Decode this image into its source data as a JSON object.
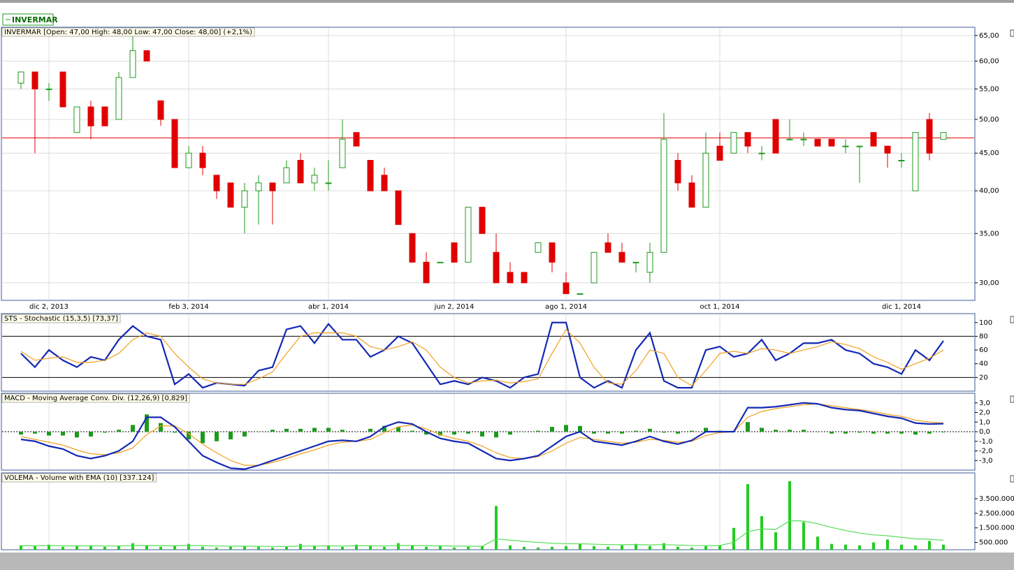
{
  "app_tab": "INVERMAR",
  "chart_data": [
    {
      "type": "candlestick",
      "title": "INVERMAR [Open: 47,00  High: 48,00  Low: 47,00  Close: 48,00] (+2,1%)",
      "categories": [
        null,
        null,
        "dic 2, 2013",
        null,
        null,
        null,
        null,
        null,
        null,
        null,
        null,
        null,
        "feb 3, 2014",
        null,
        null,
        null,
        null,
        null,
        null,
        null,
        null,
        null,
        "abr 1, 2014",
        null,
        null,
        null,
        null,
        null,
        null,
        null,
        null,
        "jun 2, 2014",
        null,
        null,
        null,
        null,
        null,
        null,
        null,
        "ago 1, 2014",
        null,
        null,
        null,
        null,
        null,
        null,
        null,
        null,
        null,
        null,
        "oct 1, 2014",
        null,
        null,
        null,
        null,
        null,
        null,
        null,
        null,
        null,
        null,
        null,
        null,
        "dic 1, 2014",
        null,
        null,
        null
      ],
      "open": [
        56,
        58,
        55,
        58,
        48,
        52,
        52,
        50,
        57,
        62,
        53,
        50,
        43,
        45,
        42,
        41,
        38,
        40,
        41,
        41,
        44,
        41,
        41,
        43,
        48,
        44,
        42,
        40,
        35,
        32,
        32,
        34,
        32,
        38,
        33,
        31,
        31,
        33,
        34,
        30,
        29,
        30,
        34,
        33,
        32,
        31,
        33,
        44,
        41,
        38,
        46,
        45,
        48,
        45,
        50,
        47,
        47,
        47,
        47,
        46,
        46,
        48,
        46,
        44,
        40,
        50,
        47
      ],
      "high": [
        58,
        58,
        56,
        58,
        52,
        53,
        52,
        58,
        65,
        62,
        53,
        50,
        46,
        46,
        42,
        41,
        41,
        42,
        41,
        44,
        45,
        43,
        44,
        50,
        48,
        44,
        43,
        40,
        35,
        33,
        32,
        34,
        38,
        38,
        35,
        32,
        31,
        34,
        34,
        31,
        29,
        33,
        35,
        34,
        32,
        34,
        51,
        45,
        42,
        48,
        48,
        48,
        48,
        46,
        50,
        50,
        48,
        47,
        47,
        47,
        46,
        48,
        46,
        45,
        48,
        51,
        48
      ],
      "low": [
        55,
        45,
        53,
        52,
        48,
        47,
        49,
        50,
        57,
        60,
        49,
        43,
        43,
        42,
        39,
        38,
        35,
        36,
        36,
        41,
        41,
        40,
        40,
        43,
        46,
        40,
        40,
        36,
        32,
        30,
        32,
        32,
        32,
        35,
        30,
        30,
        30,
        33,
        31,
        29,
        29,
        30,
        33,
        32,
        31,
        30,
        33,
        40,
        38,
        38,
        44,
        45,
        45,
        44,
        45,
        47,
        46,
        46,
        46,
        45,
        41,
        46,
        43,
        43,
        40,
        44,
        47
      ],
      "close": [
        58,
        55,
        55,
        52,
        52,
        49,
        49,
        57,
        62,
        60,
        50,
        43,
        45,
        43,
        40,
        38,
        40,
        41,
        40,
        43,
        41,
        42,
        41,
        47,
        46,
        40,
        40,
        36,
        32,
        30,
        32,
        32,
        38,
        35,
        30,
        30,
        30,
        34,
        32,
        29,
        29,
        33,
        33,
        32,
        32,
        33,
        47,
        41,
        38,
        45,
        44,
        48,
        46,
        45,
        45,
        47,
        47,
        46,
        46,
        46,
        46,
        46,
        45,
        44,
        48,
        45,
        48
      ],
      "up_color": "#1e9a1e",
      "down_color": "#e00000",
      "log_scale": true,
      "ylim": [
        28.4,
        66.7
      ],
      "yticks": [
        {
          "value": 30,
          "label": "30,00"
        },
        {
          "value": 35,
          "label": "35,00"
        },
        {
          "value": 40,
          "label": "40,00"
        },
        {
          "value": 45,
          "label": "45,00"
        },
        {
          "value": 50,
          "label": "50,00"
        },
        {
          "value": 55,
          "label": "55,00"
        },
        {
          "value": 60,
          "label": "60,00"
        },
        {
          "value": 65,
          "label": "65,00"
        }
      ],
      "grid": true,
      "reference_lines": [
        {
          "value": 47.2,
          "color": "#e00000"
        }
      ]
    },
    {
      "type": "line",
      "title": "STS - Stochastic (15,3,5) [73,37]",
      "series": [
        {
          "kind": "line",
          "color": "#1428b4",
          "values": [
            55,
            35,
            60,
            45,
            35,
            50,
            45,
            75,
            95,
            80,
            75,
            10,
            25,
            5,
            12,
            10,
            8,
            30,
            35,
            90,
            95,
            70,
            98,
            75,
            75,
            50,
            60,
            80,
            70,
            40,
            10,
            15,
            10,
            20,
            15,
            5,
            20,
            25,
            100,
            100,
            20,
            5,
            15,
            5,
            60,
            85,
            15,
            5,
            5,
            60,
            65,
            50,
            55,
            75,
            45,
            55,
            70,
            70,
            75,
            60,
            55,
            40,
            35,
            25,
            60,
            45,
            73.37
          ]
        },
        {
          "kind": "line",
          "color": "#f0a020",
          "values": [
            58,
            45,
            48,
            50,
            42,
            42,
            45,
            55,
            75,
            85,
            80,
            55,
            35,
            18,
            12,
            10,
            10,
            18,
            28,
            55,
            80,
            85,
            85,
            85,
            80,
            65,
            60,
            65,
            72,
            60,
            35,
            20,
            12,
            15,
            16,
            12,
            14,
            18,
            55,
            90,
            70,
            35,
            12,
            10,
            30,
            60,
            55,
            20,
            8,
            30,
            55,
            58,
            55,
            62,
            60,
            55,
            60,
            65,
            72,
            68,
            62,
            50,
            42,
            32,
            40,
            48,
            60
          ]
        }
      ],
      "ylim": [
        0,
        113
      ],
      "yticks": [
        20,
        40,
        60,
        80,
        100
      ],
      "grid": true,
      "reference_lines": [
        {
          "value": 20,
          "color": "#000000"
        },
        {
          "value": 80,
          "color": "#000000"
        }
      ]
    },
    {
      "type": "line",
      "title": "MACD - Moving Average Conv. Div. (12,26,9) [0,829]",
      "series": [
        {
          "kind": "bar",
          "color": "#1e9a1e",
          "values": [
            -0.3,
            -0.2,
            -0.4,
            -0.4,
            -0.6,
            -0.5,
            -0.1,
            0.2,
            0.7,
            1.8,
            0.9,
            -0.1,
            -0.8,
            -1.2,
            -1.0,
            -0.8,
            -0.5,
            0.0,
            0.2,
            0.3,
            0.3,
            0.4,
            0.4,
            0.2,
            0.0,
            0.3,
            0.6,
            0.5,
            0.1,
            -0.3,
            -0.4,
            -0.3,
            -0.2,
            -0.5,
            -0.6,
            -0.3,
            0.0,
            0.1,
            0.5,
            0.7,
            0.6,
            -0.2,
            -0.2,
            -0.2,
            0.1,
            0.3,
            -0.1,
            -0.2,
            0.1,
            0.4,
            0.1,
            0.0,
            1.0,
            0.4,
            0.2,
            0.2,
            0.2,
            0.0,
            -0.2,
            -0.2,
            -0.1,
            -0.2,
            -0.2,
            -0.2,
            -0.3,
            -0.2,
            -0.07
          ]
        },
        {
          "kind": "line",
          "color": "#f0a020",
          "values": [
            -0.5,
            -0.8,
            -1.1,
            -1.4,
            -1.9,
            -2.3,
            -2.4,
            -2.2,
            -1.7,
            -0.3,
            0.6,
            0.6,
            -0.2,
            -1.3,
            -2.2,
            -3.0,
            -3.5,
            -3.5,
            -3.2,
            -2.8,
            -2.3,
            -1.9,
            -1.4,
            -1.1,
            -1.0,
            -0.8,
            -0.1,
            0.5,
            0.7,
            0.3,
            -0.3,
            -0.7,
            -1.0,
            -1.5,
            -2.2,
            -2.7,
            -2.8,
            -2.6,
            -2.0,
            -1.2,
            -0.6,
            -0.8,
            -1.0,
            -1.2,
            -1.1,
            -0.8,
            -0.9,
            -1.1,
            -1.0,
            -0.4,
            -0.1,
            0.0,
            1.5,
            2.1,
            2.4,
            2.6,
            2.8,
            2.9,
            2.7,
            2.5,
            2.3,
            2.1,
            1.8,
            1.6,
            1.2,
            1.0,
            0.9
          ]
        },
        {
          "kind": "line",
          "color": "#1428b4",
          "values": [
            -0.8,
            -1.0,
            -1.5,
            -1.8,
            -2.5,
            -2.8,
            -2.5,
            -2.0,
            -1.0,
            1.5,
            1.5,
            0.5,
            -1.0,
            -2.5,
            -3.2,
            -3.8,
            -3.9,
            -3.5,
            -3.0,
            -2.5,
            -2.0,
            -1.5,
            -1.0,
            -0.9,
            -1.0,
            -0.5,
            0.5,
            1.0,
            0.8,
            0.0,
            -0.7,
            -1.0,
            -1.2,
            -2.0,
            -2.8,
            -3.0,
            -2.8,
            -2.5,
            -1.5,
            -0.5,
            0.0,
            -1.0,
            -1.2,
            -1.4,
            -1.0,
            -0.5,
            -1.0,
            -1.3,
            -0.9,
            0.0,
            0.0,
            0.0,
            2.5,
            2.5,
            2.6,
            2.8,
            3.0,
            2.9,
            2.5,
            2.3,
            2.2,
            1.9,
            1.6,
            1.4,
            0.9,
            0.8,
            0.83
          ]
        }
      ],
      "ylim": [
        -4,
        4
      ],
      "yticks": [
        {
          "value": -3,
          "label": "-3,0"
        },
        {
          "value": -2,
          "label": "-2,0"
        },
        {
          "value": -1,
          "label": "-1,0"
        },
        {
          "value": 0,
          "label": "0,0"
        },
        {
          "value": 1,
          "label": "1,0"
        },
        {
          "value": 2,
          "label": "2,0"
        },
        {
          "value": 3,
          "label": "3,0"
        }
      ],
      "grid": true,
      "reference_lines": [
        {
          "value": 0,
          "color": "#000000"
        }
      ]
    },
    {
      "type": "bar",
      "title": "VOLEMA - Volume with EMA (10) [337.124]",
      "series": [
        {
          "kind": "bar",
          "color": "#22cc22",
          "values": [
            300000,
            250000,
            350000,
            200000,
            250000,
            300000,
            200000,
            250000,
            450000,
            300000,
            200000,
            250000,
            400000,
            200000,
            150000,
            200000,
            250000,
            200000,
            150000,
            200000,
            400000,
            250000,
            300000,
            200000,
            350000,
            300000,
            200000,
            450000,
            300000,
            200000,
            250000,
            150000,
            200000,
            250000,
            3000000,
            300000,
            200000,
            150000,
            200000,
            250000,
            400000,
            250000,
            200000,
            300000,
            400000,
            250000,
            450000,
            200000,
            150000,
            250000,
            300000,
            1500000,
            4500000,
            2300000,
            1200000,
            4700000,
            1900000,
            900000,
            400000,
            350000,
            300000,
            500000,
            700000,
            350000,
            300000,
            600000,
            350000
          ]
        },
        {
          "kind": "line",
          "color": "#55dd55",
          "values": [
            280000,
            275000,
            290000,
            270000,
            265000,
            270000,
            260000,
            260000,
            295000,
            295000,
            280000,
            275000,
            300000,
            280000,
            255000,
            245000,
            245000,
            240000,
            225000,
            220000,
            255000,
            255000,
            265000,
            255000,
            270000,
            275000,
            260000,
            295000,
            295000,
            275000,
            270000,
            250000,
            240000,
            240000,
            740000,
            660000,
            580000,
            500000,
            445000,
            410000,
            410000,
            380000,
            350000,
            340000,
            350000,
            330000,
            350000,
            320000,
            290000,
            285000,
            290000,
            510000,
            1240000,
            1430000,
            1390000,
            1990000,
            1970000,
            1780000,
            1530000,
            1320000,
            1140000,
            1020000,
            960000,
            850000,
            750000,
            720000,
            650000
          ]
        }
      ],
      "ylim": [
        0,
        5270000
      ],
      "yticks": [
        {
          "value": 500000,
          "label": "500.000"
        },
        {
          "value": 1500000,
          "label": "1.500.000"
        },
        {
          "value": 2500000,
          "label": "2.500.000"
        },
        {
          "value": 3500000,
          "label": "3.500.000"
        }
      ],
      "grid": true,
      "reference_lines": []
    }
  ]
}
